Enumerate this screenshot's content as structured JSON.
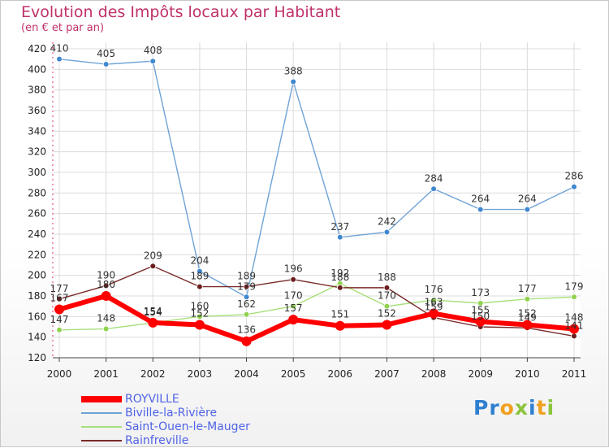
{
  "title": "Evolution des Impôts locaux par Habitant",
  "subtitle": "(en € et par an)",
  "logo": {
    "text": "Proxiti"
  },
  "chart_data": {
    "type": "line",
    "x": [
      "2000",
      "2001",
      "2002",
      "2003",
      "2004",
      "2005",
      "2006",
      "2007",
      "2008",
      "2009",
      "2010",
      "2011"
    ],
    "ylim": [
      120,
      420
    ],
    "yticks": [
      120,
      140,
      160,
      180,
      200,
      220,
      240,
      260,
      280,
      300,
      320,
      340,
      360,
      380,
      400,
      420
    ],
    "grid": true,
    "legend_position": "bottom-left",
    "series": [
      {
        "name": "ROYVILLE",
        "color": "#ff0000",
        "values": [
          167,
          180,
          154,
          152,
          136,
          157,
          151,
          152,
          163,
          155,
          152,
          148
        ],
        "labels": [
          "167",
          "180",
          "154",
          "152",
          "136",
          "157",
          "151",
          "152",
          "163",
          "155",
          "152",
          "148"
        ]
      },
      {
        "name": "Biville-la-Rivière",
        "color": "#6fa3d6",
        "values": [
          410,
          405,
          408,
          204,
          179,
          388,
          237,
          242,
          284,
          264,
          264,
          286
        ],
        "labels": [
          "410",
          "405",
          "408",
          "204",
          "179",
          "388",
          "237",
          "242",
          "284",
          "264",
          "264",
          "286"
        ]
      },
      {
        "name": "Saint-Ouen-le-Mauger",
        "color": "#a6e07a",
        "values": [
          147,
          148,
          154,
          160,
          162,
          170,
          192,
          170,
          176,
          173,
          177,
          179
        ],
        "labels": [
          "147",
          "148",
          "154",
          "160",
          "162",
          "170",
          "192",
          "170",
          "176",
          "173",
          "177",
          "179"
        ]
      },
      {
        "name": "Rainfreville",
        "color": "#7a2b2b",
        "values": [
          177,
          190,
          209,
          189,
          189,
          196,
          188,
          188,
          159,
          150,
          149,
          141
        ],
        "labels": [
          "177",
          "190",
          "209",
          "189",
          "189",
          "196",
          "188",
          "188",
          "159",
          "150",
          "149",
          "141"
        ]
      }
    ]
  }
}
